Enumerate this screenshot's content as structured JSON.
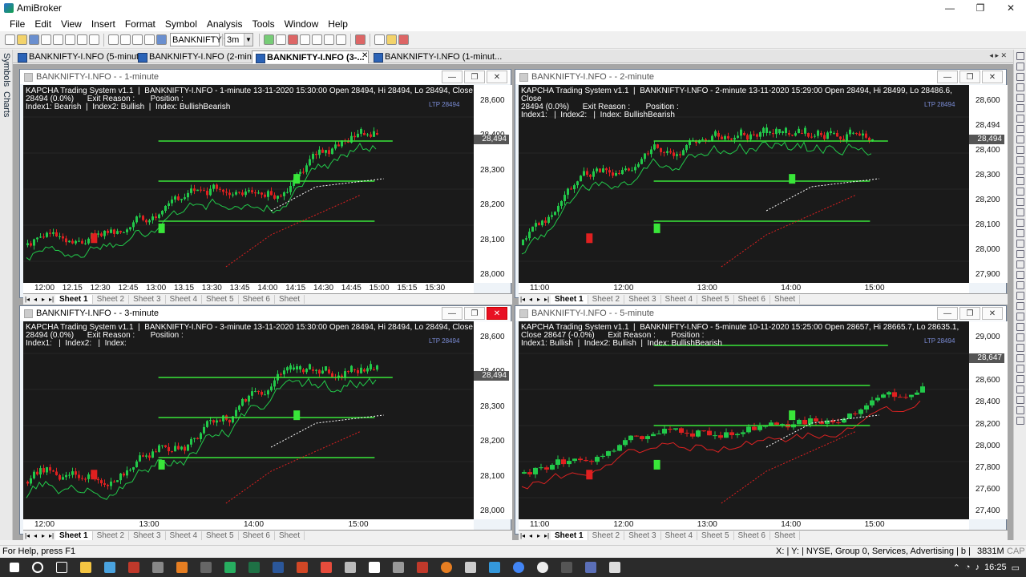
{
  "app": {
    "title": "AmiBroker",
    "win_min": "—",
    "win_max": "❐",
    "win_close": "✕"
  },
  "menu": [
    "File",
    "Edit",
    "View",
    "Insert",
    "Format",
    "Symbol",
    "Analysis",
    "Tools",
    "Window",
    "Help"
  ],
  "toolbar": {
    "symbol": "BANKNIFTY",
    "interval": "3m"
  },
  "side_tabs": [
    "Symbols",
    "Charts"
  ],
  "doc_tabs": [
    {
      "label": "BANKNIFTY-I.NFO (5-minut...",
      "active": false
    },
    {
      "label": "BANKNIFTY-I.NFO (2-minut...",
      "active": false
    },
    {
      "label": "BANKNIFTY-I.NFO (3-...",
      "active": true
    },
    {
      "label": "BANKNIFTY-I.NFO (1-minut...",
      "active": false
    }
  ],
  "sheet_tabs": [
    "Sheet 1",
    "Sheet 2",
    "Sheet 3",
    "Sheet 4",
    "Sheet 5",
    "Sheet 6",
    "Sheet"
  ],
  "charts": [
    {
      "id": "c1",
      "title": "BANKNIFTY-I.NFO - - 1-minute",
      "info": "KAPCHA Trading System v1.1  |  BANKNIFTY-I.NFO - 1-minute 13-11-2020 15:30:00 Open 28494, Hi 28494, Lo 28494, Close\n28494 (0.0%)      Exit Reason :       Position :\nIndex1: Bearish  |  Index2: Bullish  |  Index: BullishBearish",
      "ltp": "LTP 28494",
      "price": "28,494",
      "yticks": [
        "28,600",
        "28,400",
        "28,300",
        "28,200",
        "28,100",
        "28,000"
      ],
      "xticks": [
        "12:00",
        "12.15",
        "12:30",
        "12:45",
        "13:00",
        "13.15",
        "13:30",
        "13:45",
        "14:00",
        "14:15",
        "14:30",
        "14:45",
        "15:00",
        "15:15",
        "15:30"
      ]
    },
    {
      "id": "c2",
      "title": "BANKNIFTY-I.NFO - - 2-minute",
      "info": "KAPCHA Trading System v1.1  |  BANKNIFTY-I.NFO - 2-minute 13-11-2020 15:29:00 Open 28494, Hi 28499, Lo 28486.6, Close\n28494 (0.0%)      Exit Reason :       Position :\nIndex1:   |  Index2:   |  Index: BullishBearish",
      "ltp": "LTP 28494",
      "price": "28,494",
      "yticks": [
        "28,600",
        "28,494",
        "28,400",
        "28,300",
        "28,200",
        "28,100",
        "28,000",
        "27,900"
      ],
      "xticks": [
        "11:00",
        "12:00",
        "13:00",
        "14:00",
        "15:00"
      ]
    },
    {
      "id": "c3",
      "title": "BANKNIFTY-I.NFO - - 3-minute",
      "info": "KAPCHA Trading System v1.1  |  BANKNIFTY-I.NFO - 3-minute 13-11-2020 15:30:00 Open 28494, Hi 28494, Lo 28494, Close\n28494 (0.0%)      Exit Reason :       Position :\nIndex1:   |  Index2:   |  Index:",
      "ltp": "LTP 28494",
      "price": "28,494",
      "yticks": [
        "28,600",
        "28,400",
        "28,300",
        "28,200",
        "28,100",
        "28,000"
      ],
      "xticks": [
        "12:00",
        "13:00",
        "14:00",
        "15:00"
      ]
    },
    {
      "id": "c4",
      "title": "BANKNIFTY-I.NFO - - 5-minute",
      "info": "KAPCHA Trading System v1.1  |  BANKNIFTY-I.NFO - 5-minute 10-11-2020 15:25:00 Open 28657, Hi 28665.7, Lo 28635.1,\nClose 28647 (-0.0%)      Exit Reason :       Position :\nIndex1: Bullish  |  Index2: Bullish  |  Index: BullishBearish",
      "ltp": "LTP 28494",
      "price": "28,647",
      "yticks": [
        "29,000",
        "28,800",
        "28,600",
        "28,400",
        "28,200",
        "28,000",
        "27,800",
        "27,600",
        "27,400"
      ],
      "xticks": [
        "11:00",
        "12:00",
        "13:00",
        "14:00",
        "15:00"
      ]
    }
  ],
  "status": {
    "help": "For Help, press F1",
    "info": "X: | Y: | NYSE, Group 0, Services, Advertising | b |",
    "mem": "3831M",
    "cap": "CAP"
  },
  "taskbar": {
    "time": "16:25"
  }
}
